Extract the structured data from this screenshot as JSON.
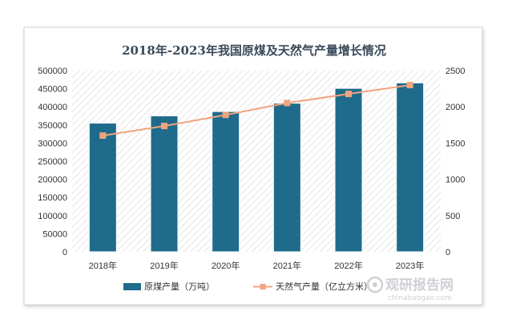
{
  "chart_data": {
    "type": "bar+line",
    "title": "2018年-2023年我国原煤及天然气产量增长情况",
    "categories": [
      "2018年",
      "2019年",
      "2020年",
      "2021年",
      "2022年",
      "2023年"
    ],
    "series": [
      {
        "name": "原煤产量（万吨）",
        "type": "bar",
        "axis": "left",
        "color": "#1f6b8c",
        "values": [
          355000,
          375000,
          387000,
          410000,
          451000,
          466000
        ]
      },
      {
        "name": "天然气产量（亿立方米）",
        "type": "line",
        "axis": "right",
        "color": "#f0a47e",
        "values": [
          1603,
          1735,
          1888,
          2053,
          2178,
          2300
        ]
      }
    ],
    "y_left": {
      "min": 0,
      "max": 500000,
      "ticks": [
        "0",
        "50000",
        "100000",
        "150000",
        "200000",
        "250000",
        "300000",
        "350000",
        "400000",
        "450000",
        "500000"
      ]
    },
    "y_right": {
      "min": 0,
      "max": 2500,
      "ticks": [
        "0",
        "500",
        "1000",
        "1500",
        "2000",
        "2500"
      ]
    },
    "legend_position": "bottom",
    "grid": false,
    "plot_background": "hatched"
  },
  "watermark": {
    "brand": "观研报告网",
    "url": "chinabaogao.com"
  }
}
